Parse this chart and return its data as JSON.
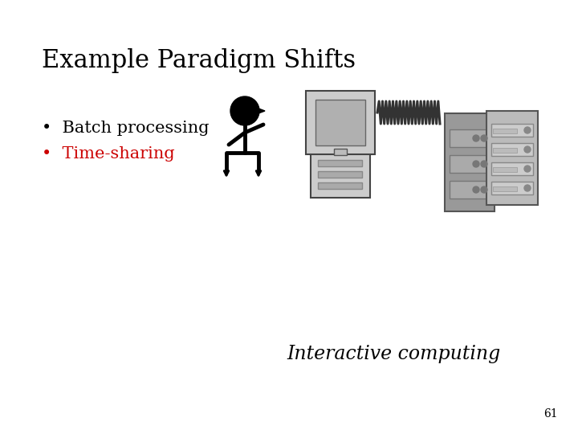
{
  "title": "Example Paradigm Shifts",
  "bullet1": "Batch processing",
  "bullet2": "Time-sharing",
  "bullet1_color": "#000000",
  "bullet2_color": "#cc0000",
  "caption": "Interactive computing",
  "page_number": "61",
  "bg_color": "#ffffff",
  "title_fontsize": 22,
  "bullet_fontsize": 15,
  "caption_fontsize": 17,
  "page_fontsize": 10
}
